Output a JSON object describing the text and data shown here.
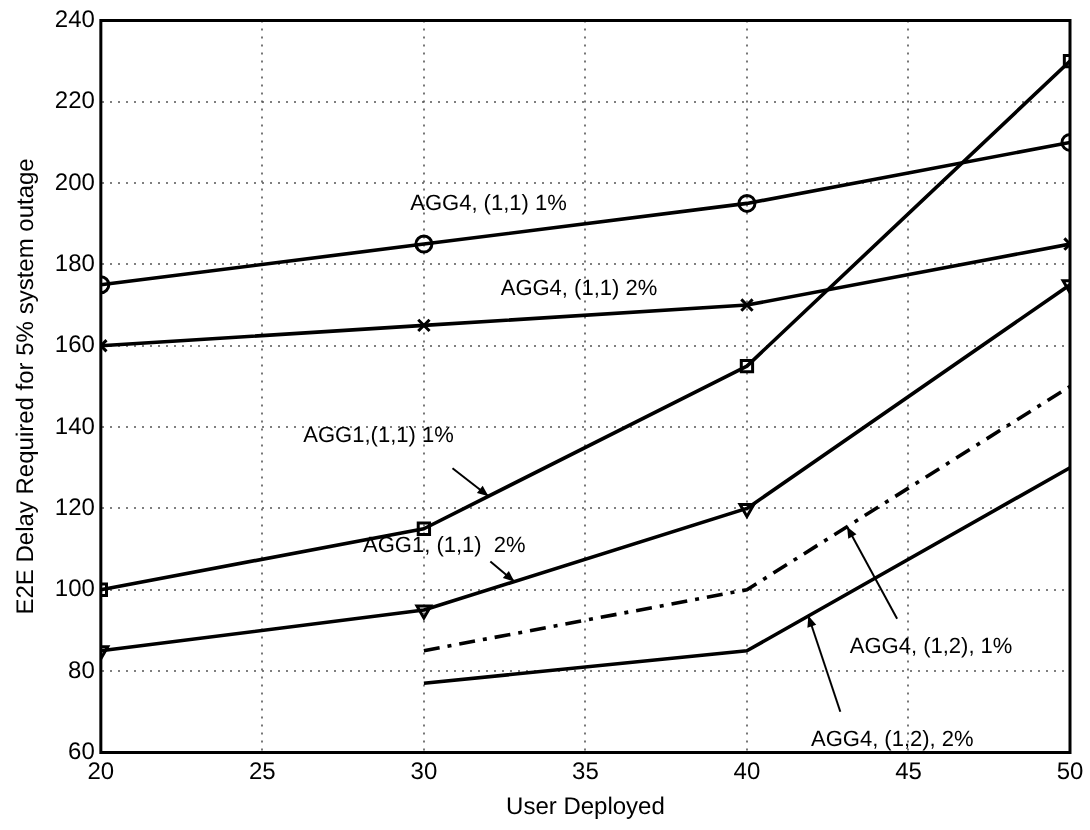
{
  "chart_data": {
    "type": "line",
    "xlabel": "User Deployed",
    "ylabel": "E2E Delay Required for 5% system outage",
    "x": [
      20,
      30,
      40,
      50
    ],
    "xlim": [
      20,
      50
    ],
    "xticks": [
      20,
      25,
      30,
      35,
      40,
      45,
      50
    ],
    "ylim": [
      60,
      240
    ],
    "yticks": [
      60,
      80,
      100,
      120,
      140,
      160,
      180,
      200,
      220,
      240
    ],
    "grid": true,
    "series": [
      {
        "color": "#000000",
        "marker": "circle",
        "values": [
          175,
          185,
          195,
          210
        ]
      },
      {
        "color": "#000000",
        "marker": "cross",
        "values": [
          160,
          165,
          170,
          185
        ]
      },
      {
        "color": "#000000",
        "marker": "square",
        "values": [
          100,
          115,
          155,
          230
        ]
      },
      {
        "color": "#000000",
        "marker": "triangle",
        "values": [
          85,
          95,
          120,
          175
        ]
      },
      {
        "color": "#000000",
        "marker": "none",
        "line_style": "dashdot",
        "values": [
          null,
          85,
          100,
          150
        ]
      },
      {
        "color": "#000000",
        "marker": "none",
        "values": [
          null,
          77,
          85,
          130
        ]
      }
    ],
    "annotations": [
      {
        "text": "AGG4, (1,1) 1%",
        "x": 32,
        "y": 187
      },
      {
        "text": "AGG4, (1,1) 2%",
        "x": 34.8,
        "y": 167
      },
      {
        "text": "AGG1,(1,1) 1%",
        "x": 32,
        "y": 123
      },
      {
        "text": "AGG1, (1,1)  2%",
        "x": 32.8,
        "y": 102
      },
      {
        "text": "AGG4, (1,2), 1%",
        "x": 43.1,
        "y": 115.5
      },
      {
        "text": "AGG4, (1,2), 2%",
        "x": 41.9,
        "y": 93.6
      }
    ]
  }
}
